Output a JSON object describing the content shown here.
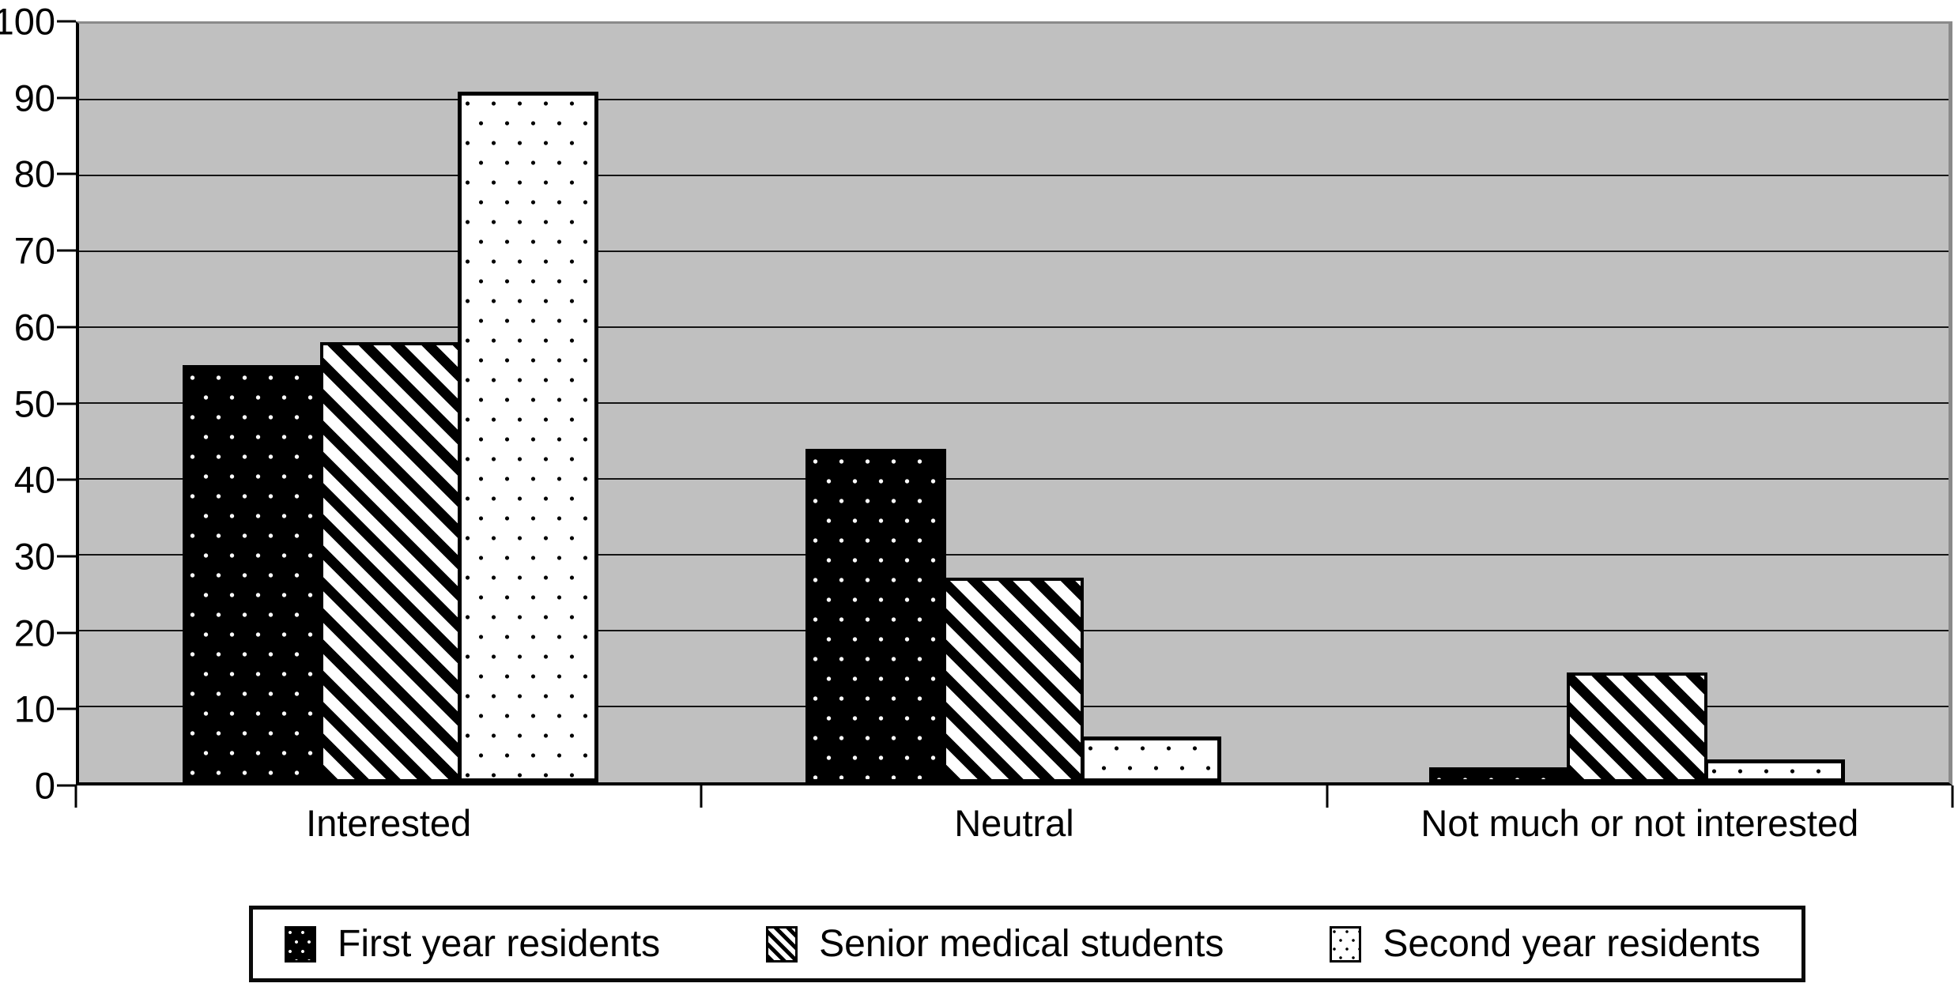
{
  "chart_data": {
    "type": "bar",
    "title": "",
    "xlabel": "",
    "ylabel": "",
    "categories": [
      "Interested",
      "Neutral",
      "Not much or not interested"
    ],
    "series": [
      {
        "name": "First year residents",
        "pattern": "black-with-white-dots",
        "values": [
          55,
          44,
          2
        ]
      },
      {
        "name": "Senior medical students",
        "pattern": "black-diagonal-stripes-on-white",
        "values": [
          58,
          27,
          14.5
        ]
      },
      {
        "name": "Second year residents",
        "pattern": "white-with-black-dots",
        "values": [
          91,
          6,
          3
        ]
      }
    ],
    "ylim": [
      0,
      100
    ],
    "y_ticks": [
      0,
      10,
      20,
      30,
      40,
      50,
      60,
      70,
      80,
      90,
      100
    ],
    "grid": "horizontal-only",
    "legend_position": "bottom-box",
    "colors": {
      "plot_background": "#c0c0c0",
      "page_background": "#ffffff",
      "gridline": "#141414",
      "axis": "#000000",
      "bar_black": "#000000",
      "bar_white": "#ffffff"
    }
  }
}
